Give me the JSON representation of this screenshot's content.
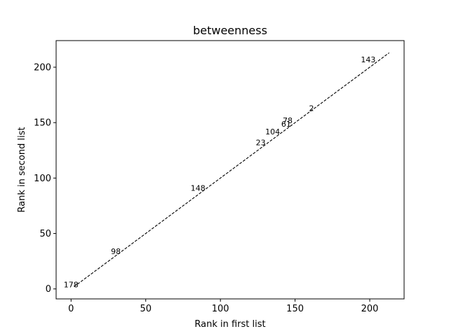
{
  "chart_data": {
    "type": "line",
    "title": "betweenness",
    "xlabel": "Rank in first list",
    "ylabel": "Rank in second list",
    "xlim": [
      -10,
      223
    ],
    "ylim": [
      -9,
      224
    ],
    "xticks": [
      0,
      50,
      100,
      150,
      200
    ],
    "yticks": [
      0,
      50,
      100,
      150,
      200
    ],
    "grid": false,
    "series": [
      {
        "style": "dashed",
        "color": "#000000",
        "x": [
          2,
          213
        ],
        "y": [
          2,
          213
        ]
      }
    ],
    "annotations": [
      {
        "text": "178",
        "x": 0,
        "y": 4
      },
      {
        "text": "98",
        "x": 30,
        "y": 34
      },
      {
        "text": "148",
        "x": 85,
        "y": 91
      },
      {
        "text": "23",
        "x": 127,
        "y": 132
      },
      {
        "text": "104",
        "x": 135,
        "y": 142
      },
      {
        "text": "78",
        "x": 145,
        "y": 152
      },
      {
        "text": "61",
        "x": 144,
        "y": 149
      },
      {
        "text": "2",
        "x": 161,
        "y": 163
      },
      {
        "text": "143",
        "x": 199,
        "y": 207
      }
    ]
  }
}
